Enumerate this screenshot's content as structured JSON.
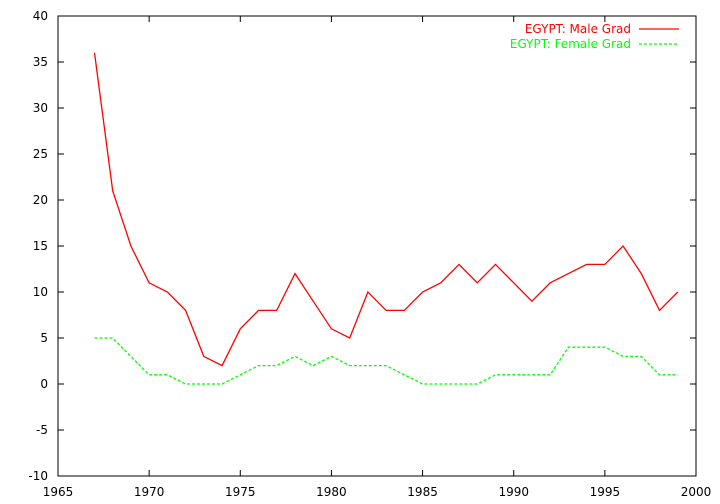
{
  "chart_data": {
    "type": "line",
    "title": "",
    "xlabel": "",
    "ylabel": "",
    "xlim": [
      1965,
      2000
    ],
    "ylim": [
      -10,
      40
    ],
    "x_ticks": [
      1965,
      1970,
      1975,
      1980,
      1985,
      1990,
      1995,
      2000
    ],
    "y_ticks": [
      -10,
      -5,
      0,
      5,
      10,
      15,
      20,
      25,
      30,
      35,
      40
    ],
    "grid": false,
    "legend_position": "top-right",
    "series": [
      {
        "name": "EGYPT: Male Grad",
        "color": "#ff0000",
        "style": "solid",
        "x": [
          1967,
          1968,
          1969,
          1970,
          1971,
          1972,
          1973,
          1974,
          1975,
          1976,
          1977,
          1978,
          1979,
          1980,
          1981,
          1982,
          1983,
          1984,
          1985,
          1986,
          1987,
          1988,
          1989,
          1990,
          1991,
          1992,
          1993,
          1994,
          1995,
          1996,
          1997,
          1998,
          1999
        ],
        "values": [
          36,
          21,
          15,
          11,
          10,
          8,
          3,
          2,
          6,
          8,
          8,
          12,
          9,
          6,
          5,
          10,
          8,
          8,
          10,
          11,
          13,
          11,
          13,
          11,
          9,
          11,
          12,
          13,
          13,
          15,
          12,
          8,
          10
        ]
      },
      {
        "name": "EGYPT: Female Grad",
        "color": "#00ff00",
        "style": "dashed",
        "x": [
          1967,
          1968,
          1969,
          1970,
          1971,
          1972,
          1973,
          1974,
          1975,
          1976,
          1977,
          1978,
          1979,
          1980,
          1981,
          1982,
          1983,
          1984,
          1985,
          1986,
          1987,
          1988,
          1989,
          1990,
          1991,
          1992,
          1993,
          1994,
          1995,
          1996,
          1997,
          1998,
          1999
        ],
        "values": [
          5,
          5,
          3,
          1,
          1,
          0,
          0,
          0,
          1,
          2,
          2,
          3,
          2,
          3,
          2,
          2,
          2,
          1,
          0,
          0,
          0,
          0,
          1,
          1,
          1,
          1,
          4,
          4,
          4,
          3,
          3,
          1,
          1
        ]
      }
    ]
  }
}
